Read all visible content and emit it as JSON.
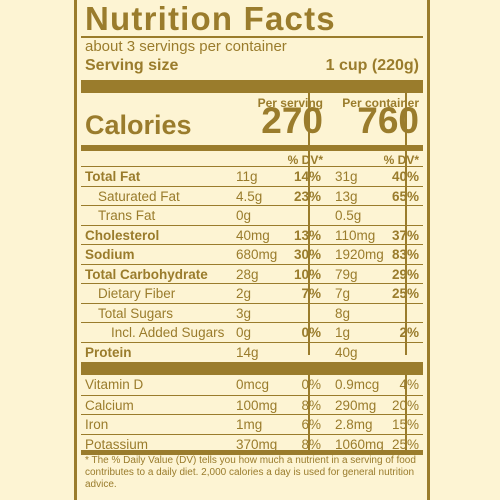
{
  "title": "Nutrition Facts",
  "servings": "about 3 servings per container",
  "serving_size_label": "Serving size",
  "serving_size_value": "1 cup (220g)",
  "col_per_serving": "Per serving",
  "col_per_container": "Per container",
  "calories_label": "Calories",
  "calories_serving": "270",
  "calories_container": "760",
  "dv_label": "% DV*",
  "nutrients": [
    {
      "name": "Total Fat",
      "a1": "11g",
      "p1": "14%",
      "a2": "31g",
      "p2": "40%"
    },
    {
      "name": "Saturated Fat",
      "a1": "4.5g",
      "p1": "23%",
      "a2": "13g",
      "p2": "65%"
    },
    {
      "name": "Trans Fat",
      "a1": "0g",
      "p1": "",
      "a2": "0.5g",
      "p2": ""
    },
    {
      "name": "Cholesterol",
      "a1": "40mg",
      "p1": "13%",
      "a2": "110mg",
      "p2": "37%"
    },
    {
      "name": "Sodium",
      "a1": "680mg",
      "p1": "30%",
      "a2": "1920mg",
      "p2": "83%"
    },
    {
      "name": "Total Carbohydrate",
      "a1": "28g",
      "p1": "10%",
      "a2": "79g",
      "p2": "29%"
    },
    {
      "name": "Dietary Fiber",
      "a1": "2g",
      "p1": "7%",
      "a2": "7g",
      "p2": "25%"
    },
    {
      "name": "Total Sugars",
      "a1": "3g",
      "p1": "",
      "a2": "8g",
      "p2": ""
    },
    {
      "name": "Incl. Added Sugars",
      "a1": "0g",
      "p1": "0%",
      "a2": "1g",
      "p2": "2%"
    },
    {
      "name": "Protein",
      "a1": "14g",
      "p1": "",
      "a2": "40g",
      "p2": ""
    }
  ],
  "vitamins": [
    {
      "name": "Vitamin D",
      "a1": "0mcg",
      "p1": "0%",
      "a2": "0.9mcg",
      "p2": "4%"
    },
    {
      "name": "Calcium",
      "a1": "100mg",
      "p1": "8%",
      "a2": "290mg",
      "p2": "20%"
    },
    {
      "name": "Iron",
      "a1": "1mg",
      "p1": "6%",
      "a2": "2.8mg",
      "p2": "15%"
    },
    {
      "name": "Potassium",
      "a1": "370mg",
      "p1": "8%",
      "a2": "1060mg",
      "p2": "25%"
    }
  ],
  "footnote": "* The % Daily Value (DV) tells you how much a nutrient in a serving of food contributes to a daily diet. 2,000 calories a day is used for general nutrition advice."
}
